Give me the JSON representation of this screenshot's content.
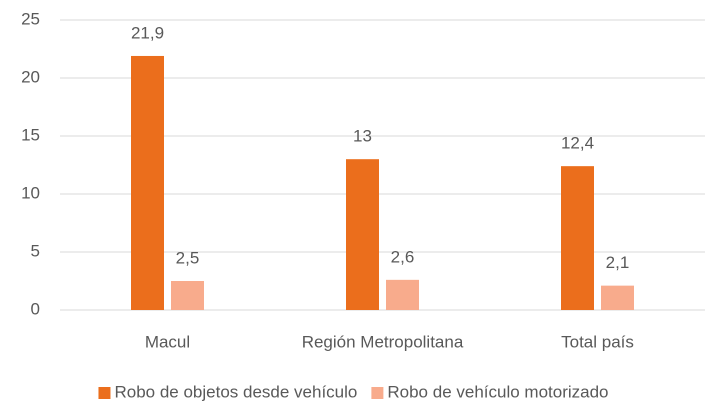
{
  "chart_data": {
    "type": "bar",
    "categories": [
      "Macul",
      "Región Metropolitana",
      "Total país"
    ],
    "series": [
      {
        "name": "Robo de objetos desde vehículo",
        "color": "#eb6e1c",
        "values": [
          21.9,
          13,
          12.4
        ],
        "value_labels": [
          "21,9",
          "13",
          "12,4"
        ]
      },
      {
        "name": "Robo de vehículo motorizado",
        "color": "#f8ab8c",
        "values": [
          2.5,
          2.6,
          2.1
        ],
        "value_labels": [
          "2,5",
          "2,6",
          "2,1"
        ]
      }
    ],
    "ylim": [
      0,
      25
    ],
    "yticks": [
      0,
      5,
      10,
      15,
      20,
      25
    ],
    "grid": true,
    "legend": "bottom"
  }
}
